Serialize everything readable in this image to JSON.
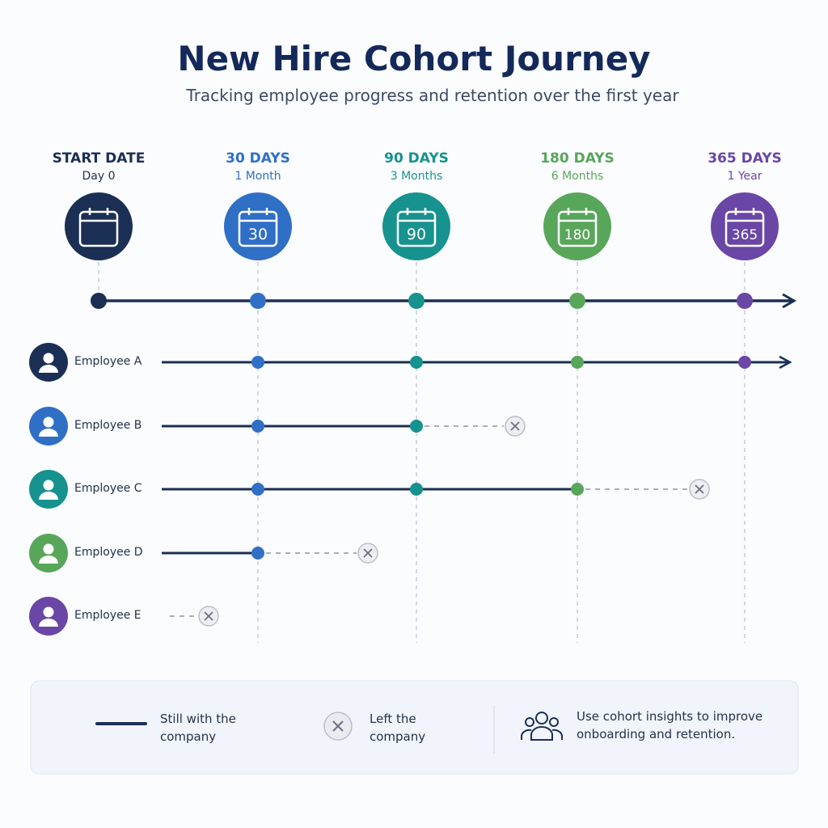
{
  "header": {
    "title": "New Hire Cohort Journey",
    "subtitle": "Tracking employee progress and retention over the first year"
  },
  "milestones": [
    {
      "label": "START DATE",
      "sub": "Day 0",
      "color": "#1b2f55"
    },
    {
      "label": "30 DAYS",
      "sub": "1 Month",
      "icon": "30",
      "color": "#2f6fc6"
    },
    {
      "label": "90 DAYS",
      "sub": "3 Months",
      "icon": "90",
      "color": "#16928f"
    },
    {
      "label": "180 DAYS",
      "sub": "6 Months",
      "icon": "180",
      "color": "#58a65a"
    },
    {
      "label": "365 DAYS",
      "sub": "1 Year",
      "icon": "365",
      "color": "#6a46a6"
    }
  ],
  "employees": [
    {
      "name": "Employee A",
      "color": "#1b2f55"
    },
    {
      "name": "Employee B",
      "color": "#2f6fc6"
    },
    {
      "name": "Employee C",
      "color": "#16928f"
    },
    {
      "name": "Employee D",
      "color": "#58a65a"
    },
    {
      "name": "Employee E",
      "color": "#6a46a6"
    }
  ],
  "legend": {
    "still": "Still with the company",
    "left": "Left the company",
    "note": "Use cohort insights to improve onboarding and retention."
  }
}
